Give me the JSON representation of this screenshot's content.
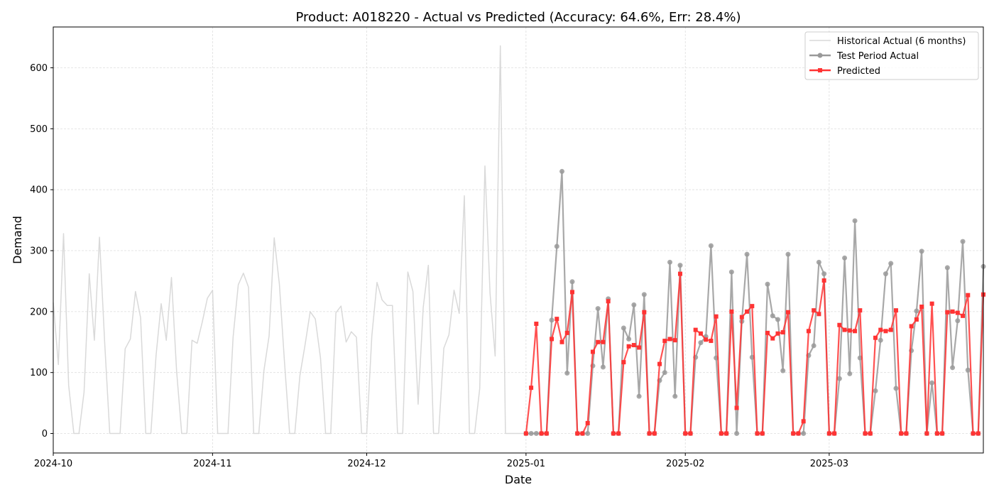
{
  "chart_data": {
    "type": "line",
    "title": "Product: A018220 - Actual vs Predicted (Accuracy: 64.6%, Err: 28.4%)",
    "xlabel": "Date",
    "ylabel": "Demand",
    "xlim": [
      "2024-10-01",
      "2025-03-31"
    ],
    "ylim": [
      -32,
      667
    ],
    "x_ticks": [
      "2024-10",
      "2024-11",
      "2024-12",
      "2025-01",
      "2025-02",
      "2025-03"
    ],
    "y_ticks": [
      0,
      100,
      200,
      300,
      400,
      500,
      600
    ],
    "grid": true,
    "legend_position": "top-right",
    "series": [
      {
        "name": "Historical Actual (6 months)",
        "color": "#d9d9d9",
        "marker": "none",
        "start": "2024-10-01",
        "values": [
          215,
          113,
          328,
          79,
          0,
          0,
          68,
          262,
          153,
          322,
          150,
          0,
          0,
          0,
          139,
          155,
          233,
          190,
          0,
          0,
          128,
          213,
          153,
          256,
          103,
          0,
          0,
          153,
          148,
          183,
          222,
          235,
          0,
          0,
          0,
          158,
          244,
          263,
          240,
          0,
          0,
          103,
          160,
          321,
          245,
          117,
          0,
          0,
          95,
          145,
          200,
          188,
          124,
          0,
          0,
          198,
          209,
          150,
          167,
          158,
          0,
          0,
          160,
          248,
          219,
          210,
          210,
          0,
          0,
          265,
          233,
          48,
          207,
          276,
          0,
          0,
          140,
          162,
          235,
          197,
          390,
          0,
          0,
          74,
          439,
          230,
          127,
          636,
          0,
          0,
          0,
          0,
          0
        ]
      },
      {
        "name": "Test Period Actual",
        "color": "#999999",
        "marker": "circle",
        "start": "2025-01-01",
        "values": [
          0,
          0,
          0,
          0,
          0,
          186,
          307,
          430,
          99,
          249,
          0,
          0,
          0,
          111,
          205,
          109,
          221,
          0,
          0,
          173,
          155,
          211,
          61,
          228,
          0,
          0,
          87,
          100,
          281,
          61,
          276,
          0,
          0,
          125,
          149,
          159,
          308,
          124,
          0,
          0,
          265,
          0,
          184,
          294,
          125,
          0,
          0,
          245,
          193,
          187,
          103,
          294,
          0,
          0,
          0,
          128,
          144,
          281,
          262,
          0,
          0,
          90,
          288,
          98,
          349,
          124,
          0,
          0,
          70,
          153,
          262,
          279,
          74,
          0,
          0,
          136,
          201,
          299,
          0,
          83,
          0,
          0,
          272,
          108,
          185,
          315,
          104,
          0,
          0,
          274
        ]
      },
      {
        "name": "Predicted",
        "color": "#ff3333",
        "marker": "square",
        "start": "2025-01-01",
        "values": [
          0,
          75,
          180,
          0,
          0,
          155,
          188,
          150,
          165,
          232,
          0,
          0,
          17,
          134,
          150,
          150,
          217,
          0,
          0,
          117,
          143,
          145,
          141,
          199,
          0,
          0,
          114,
          152,
          155,
          153,
          262,
          0,
          0,
          170,
          164,
          154,
          152,
          192,
          0,
          0,
          200,
          42,
          191,
          200,
          209,
          0,
          0,
          165,
          156,
          164,
          166,
          199,
          0,
          0,
          20,
          168,
          202,
          196,
          251,
          0,
          0,
          178,
          170,
          169,
          168,
          202,
          0,
          0,
          157,
          170,
          168,
          170,
          202,
          0,
          0,
          176,
          187,
          208,
          0,
          213,
          0,
          0,
          199,
          200,
          198,
          193,
          227,
          0,
          0,
          228
        ]
      }
    ]
  }
}
